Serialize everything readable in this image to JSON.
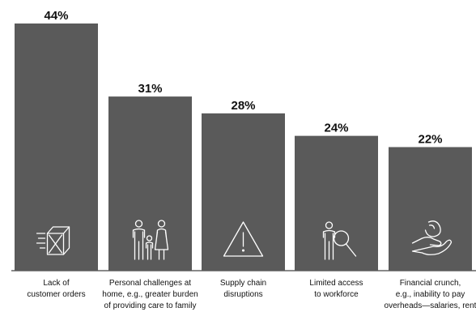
{
  "chart_data": {
    "type": "bar",
    "title": "",
    "xlabel": "",
    "ylabel": "",
    "ylim": [
      0,
      44
    ],
    "grid": false,
    "legend": "none",
    "bar_color": "#5a5a5a",
    "categories": [
      [
        "Lack of",
        "customer orders"
      ],
      [
        "Personal challenges at",
        "home, e.g., greater burden",
        "of providing care to family"
      ],
      [
        "Supply chain",
        "disruptions"
      ],
      [
        "Limited access",
        "to workforce"
      ],
      [
        "Financial crunch,",
        "e.g., inability to pay",
        "overheads—salaries, rent"
      ]
    ],
    "values": [
      44,
      31,
      28,
      24,
      22
    ],
    "value_labels": [
      "44%",
      "31%",
      "28%",
      "24%",
      "22%"
    ],
    "icons": [
      "box-icon",
      "family-icon",
      "warning-icon",
      "magnifier-person-icon",
      "hand-money-icon"
    ]
  }
}
